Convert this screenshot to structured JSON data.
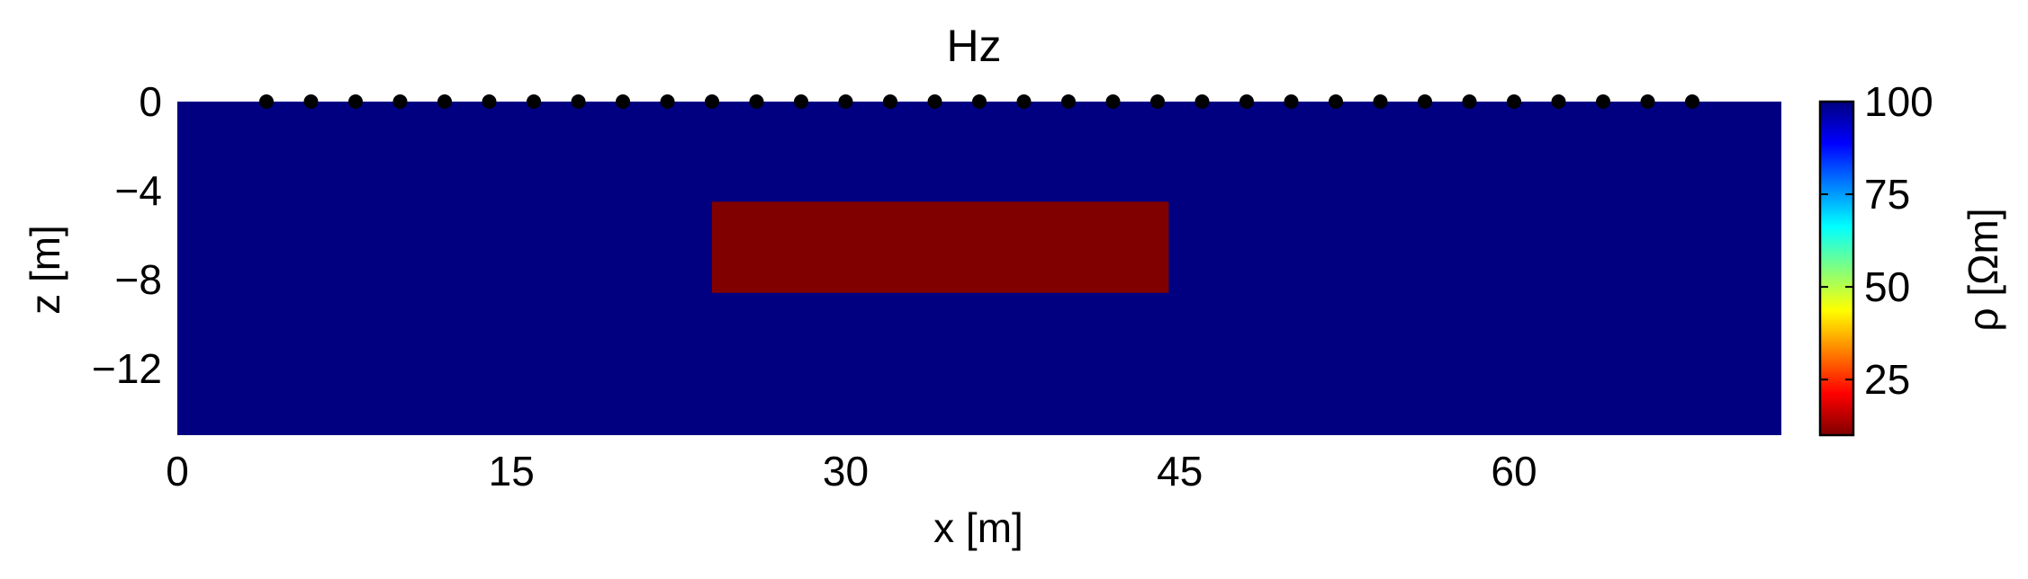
{
  "chart_data": {
    "type": "heatmap",
    "title": "Hz",
    "xlabel": "x [m]",
    "ylabel": "z [m]",
    "xlim": [
      0,
      72
    ],
    "ylim": [
      -15,
      0
    ],
    "x_ticks": [
      0,
      15,
      30,
      45,
      60
    ],
    "x_tick_labels": [
      "0",
      "15",
      "30",
      "45",
      "60"
    ],
    "y_ticks": [
      0,
      -4,
      -8,
      -12
    ],
    "y_tick_labels": [
      "0",
      "−4",
      "−8",
      "−12"
    ],
    "background": {
      "resistivity": 100,
      "color": "#000080"
    },
    "block": {
      "x_range": [
        24,
        44.5
      ],
      "z_range": [
        -8.6,
        -4.5
      ],
      "resistivity": 10,
      "color": "#800000"
    },
    "stations": {
      "z": 0,
      "x": [
        4,
        6,
        8,
        10,
        12,
        14,
        16,
        18,
        20,
        22,
        24,
        26,
        28,
        30,
        32,
        34,
        36,
        38,
        40,
        42,
        44,
        46,
        48,
        50,
        52,
        54,
        56,
        58,
        60,
        62,
        64,
        66,
        68
      ],
      "color": "#000000"
    },
    "colorbar": {
      "label": "ρ [Ωm]",
      "min": 10,
      "max": 100,
      "ticks": [
        25,
        50,
        75,
        100
      ],
      "tick_labels": [
        "25",
        "50",
        "75",
        "100"
      ],
      "colormap": [
        "#800000",
        "#ff0000",
        "#ff8000",
        "#ffff00",
        "#80ff80",
        "#00ffff",
        "#0080ff",
        "#0000ff",
        "#000080"
      ]
    },
    "grid": false
  }
}
